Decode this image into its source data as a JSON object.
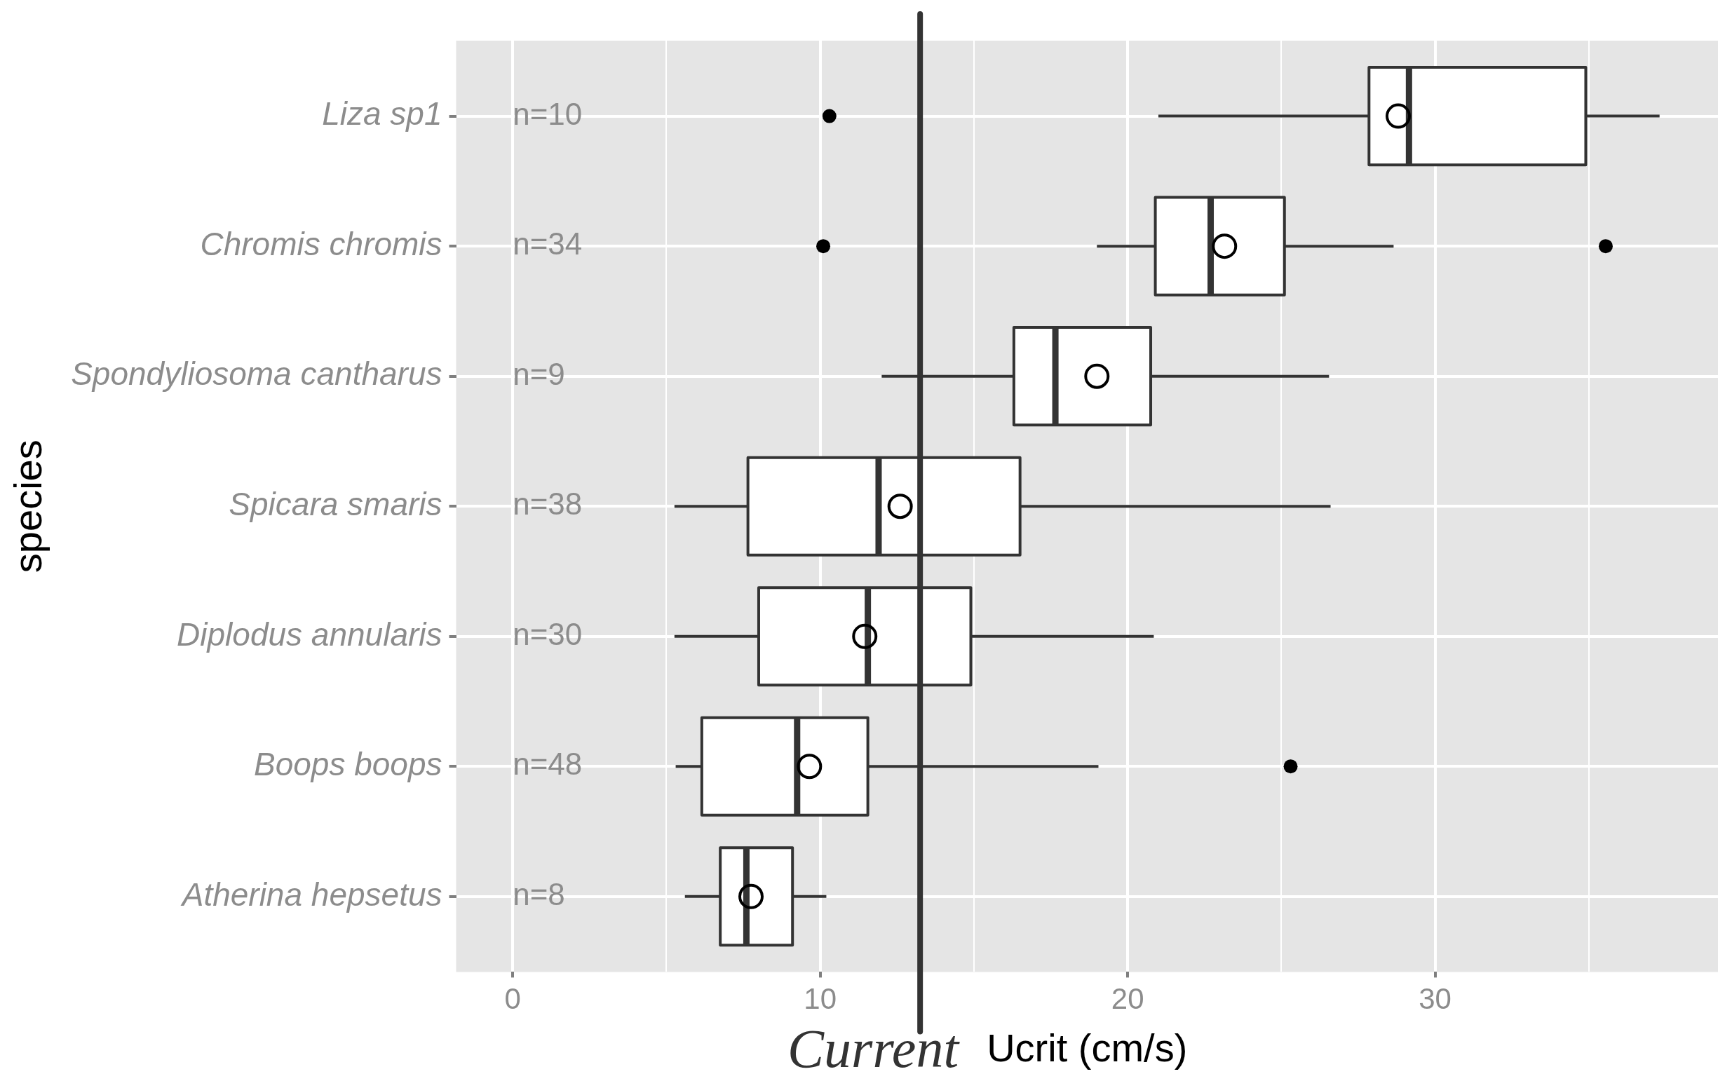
{
  "chart_data": {
    "type": "box",
    "orientation": "horizontal",
    "xlabel": "Ucrit (cm/s)",
    "ylabel": "species",
    "categories": [
      "Liza sp1",
      "Chromis chromis",
      "Spondyliosoma cantharus",
      "Spicara smaris",
      "Diplodus annularis",
      "Boops boops",
      "Atherina hepsetus"
    ],
    "boxes": [
      {
        "low": 21.0,
        "q1": 27.85,
        "median": 29.15,
        "q3": 34.9,
        "high": 37.3,
        "mean": 28.8,
        "outliers": [
          10.3
        ]
      },
      {
        "low": 19.0,
        "q1": 20.9,
        "median": 22.7,
        "q3": 25.1,
        "high": 28.65,
        "mean": 23.15,
        "outliers": [
          10.1,
          35.55
        ]
      },
      {
        "low": 12.0,
        "q1": 16.3,
        "median": 17.65,
        "q3": 20.75,
        "high": 26.55,
        "mean": 19.0
      },
      {
        "low": 5.26,
        "q1": 7.65,
        "median": 11.9,
        "q3": 16.5,
        "high": 26.6,
        "mean": 12.6
      },
      {
        "low": 5.26,
        "q1": 8.0,
        "median": 11.55,
        "q3": 14.9,
        "high": 20.85,
        "mean": 11.45
      },
      {
        "low": 5.3,
        "q1": 6.15,
        "median": 9.25,
        "q3": 11.55,
        "high": 19.05,
        "mean": 9.65,
        "outliers": [
          25.3
        ]
      },
      {
        "low": 5.6,
        "q1": 6.75,
        "median": 7.6,
        "q3": 9.1,
        "high": 10.2,
        "mean": 7.75
      }
    ],
    "xlim": [
      -1.84,
      39.2
    ],
    "xticks": [
      0,
      {
        "value": 5,
        "label": null
      },
      10,
      {
        "value": 15,
        "label": null
      },
      20,
      {
        "value": 25,
        "label": null
      },
      30,
      {
        "value": 35,
        "label": null
      }
    ],
    "grid": true,
    "ref_lines": [
      {
        "axis": "x",
        "value": 13.25,
        "label": "Current",
        "color": "#333333"
      }
    ],
    "annotations": [
      "n=10",
      "n=34",
      "n=9",
      "n=38",
      "n=30",
      "n=48",
      "n=8"
    ]
  }
}
